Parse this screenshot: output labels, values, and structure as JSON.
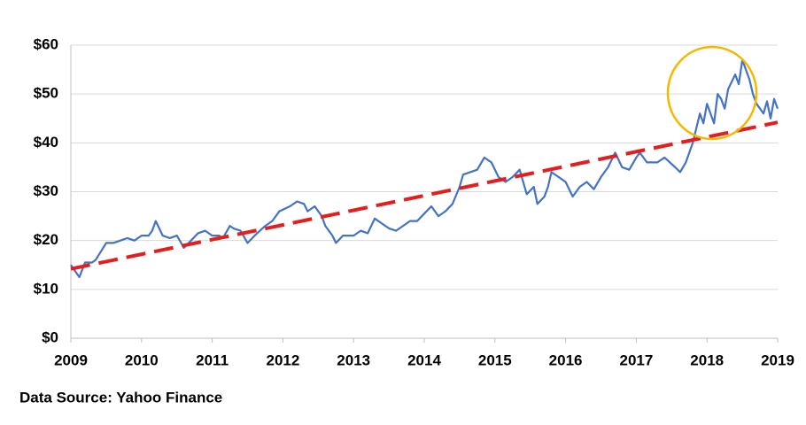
{
  "chart_data": {
    "type": "line",
    "source": "Data Source: Yahoo Finance",
    "xlim": [
      2009,
      2019
    ],
    "xticks": [
      2009,
      2010,
      2011,
      2012,
      2013,
      2014,
      2015,
      2016,
      2017,
      2018,
      2019
    ],
    "ylim": [
      0,
      60
    ],
    "yticks": [
      {
        "value": 0,
        "label": "$0"
      },
      {
        "value": 10,
        "label": "$10"
      },
      {
        "value": 20,
        "label": "$20"
      },
      {
        "value": 30,
        "label": "$30"
      },
      {
        "value": 40,
        "label": "$40"
      },
      {
        "value": 50,
        "label": "$50"
      },
      {
        "value": 60,
        "label": "$60"
      }
    ],
    "grid": true,
    "series": [
      {
        "color": "#4472c4",
        "dash": false,
        "x": [
          2009.0,
          2009.12,
          2009.2,
          2009.3,
          2009.35,
          2009.5,
          2009.6,
          2009.7,
          2009.8,
          2009.9,
          2010.0,
          2010.1,
          2010.15,
          2010.2,
          2010.3,
          2010.4,
          2010.5,
          2010.6,
          2010.7,
          2010.8,
          2010.9,
          2011.0,
          2011.1,
          2011.15,
          2011.25,
          2011.3,
          2011.4,
          2011.5,
          2011.6,
          2011.75,
          2011.85,
          2011.95,
          2012.1,
          2012.2,
          2012.3,
          2012.35,
          2012.45,
          2012.55,
          2012.6,
          2012.7,
          2012.75,
          2012.85,
          2013.0,
          2013.1,
          2013.2,
          2013.3,
          2013.4,
          2013.5,
          2013.6,
          2013.7,
          2013.8,
          2013.9,
          2014.0,
          2014.1,
          2014.2,
          2014.3,
          2014.4,
          2014.5,
          2014.55,
          2014.65,
          2014.75,
          2014.85,
          2014.95,
          2015.05,
          2015.15,
          2015.25,
          2015.35,
          2015.45,
          2015.55,
          2015.6,
          2015.7,
          2015.75,
          2015.8,
          2015.9,
          2016.0,
          2016.1,
          2016.2,
          2016.3,
          2016.4,
          2016.5,
          2016.6,
          2016.7,
          2016.8,
          2016.9,
          2017.0,
          2017.05,
          2017.15,
          2017.3,
          2017.4,
          2017.55,
          2017.62,
          2017.7,
          2017.8,
          2017.85,
          2017.9,
          2017.95,
          2018.0,
          2018.1,
          2018.15,
          2018.2,
          2018.25,
          2018.3,
          2018.4,
          2018.45,
          2018.5,
          2018.6,
          2018.65,
          2018.7,
          2018.8,
          2018.85,
          2018.9,
          2018.95,
          2019.0
        ],
        "values": [
          15,
          12.5,
          15.5,
          15.5,
          16,
          19.5,
          19.5,
          20,
          20.5,
          20,
          21,
          21,
          22,
          24,
          21,
          20.5,
          21,
          18.5,
          20,
          21.5,
          22,
          21,
          21,
          20.5,
          23,
          22.5,
          22,
          19.5,
          21,
          23,
          24,
          26,
          27,
          28,
          27.5,
          26,
          27,
          25,
          23,
          21,
          19.5,
          21,
          21,
          22,
          21.5,
          24.5,
          23.5,
          22.5,
          22,
          23,
          24,
          24,
          25.5,
          27,
          25,
          26,
          27.5,
          31,
          33.5,
          34,
          34.5,
          37,
          36,
          33,
          32,
          33,
          34.5,
          29.5,
          31,
          27.5,
          29,
          31,
          34,
          33,
          32,
          29,
          31,
          32,
          30.5,
          33,
          35,
          38,
          35,
          34.5,
          37,
          38,
          36,
          36,
          37,
          35,
          34,
          36,
          40,
          43,
          46,
          44,
          48,
          44,
          50,
          49,
          47,
          51,
          54,
          52,
          57,
          53,
          50,
          48,
          46,
          48.5,
          45,
          49,
          47
        ]
      },
      {
        "color": "#e41e1e",
        "dash": true,
        "x": [
          2009,
          2019
        ],
        "values": [
          14.2,
          44.2
        ]
      }
    ]
  }
}
